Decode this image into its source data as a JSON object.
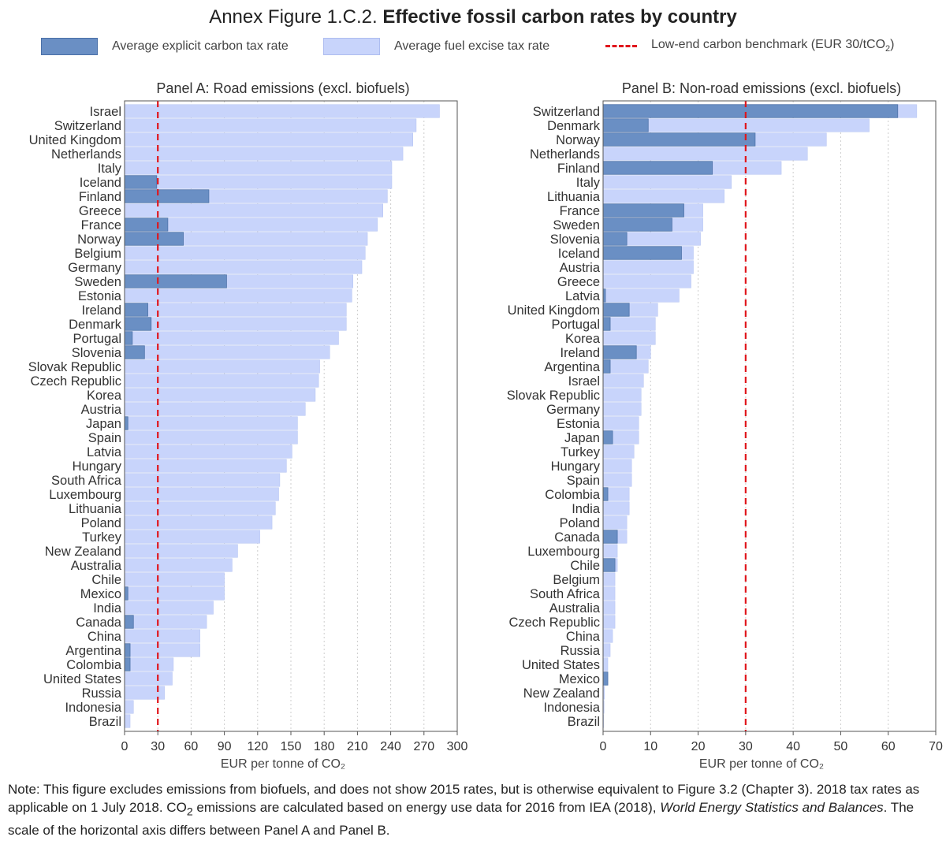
{
  "figure": {
    "title_lead": "Annex Figure 1.C.2.",
    "title_bold": "Effective fossil carbon rates by country"
  },
  "legend": {
    "carbon_tax": "Average explicit carbon tax rate",
    "fuel_excise": "Average fuel excise tax rate",
    "benchmark": "Low-end carbon benchmark (EUR 30/tCO",
    "benchmark_sub": "2",
    "benchmark_end": ")"
  },
  "colors": {
    "carbon_tax": "#6a8fc4",
    "fuel_excise": "#c8d4fb",
    "benchmark": "#e0161c"
  },
  "note": {
    "part1": "Note: This figure excludes emissions from biofuels, and does not show 2015 rates, but is otherwise equivalent to Figure 3.2 (Chapter 3). 2018 tax rates as applicable on 1 July 2018. CO",
    "sub": "2",
    "part2": " emissions are calculated based on energy use data for 2016 from IEA (2018), ",
    "italic": "World Energy Statistics and Balances",
    "part3": ". The scale of the horizontal axis differs between Panel A and Panel B."
  },
  "chart_data": [
    {
      "type": "bar",
      "orientation": "horizontal",
      "title": "Panel A: Road emissions (excl. biofuels)",
      "xlabel": "EUR per tonne of CO₂",
      "xlim": [
        0,
        300
      ],
      "xticks": [
        0,
        30,
        60,
        90,
        120,
        150,
        180,
        210,
        240,
        270,
        300
      ],
      "benchmark": 30,
      "categories": [
        "Israel",
        "Switzerland",
        "United Kingdom",
        "Netherlands",
        "Italy",
        "Iceland",
        "Finland",
        "Greece",
        "France",
        "Norway",
        "Belgium",
        "Germany",
        "Sweden",
        "Estonia",
        "Ireland",
        "Denmark",
        "Portugal",
        "Slovenia",
        "Slovak Republic",
        "Czech Republic",
        "Korea",
        "Austria",
        "Japan",
        "Spain",
        "Latvia",
        "Hungary",
        "South Africa",
        "Luxembourg",
        "Lithuania",
        "Poland",
        "Turkey",
        "New Zealand",
        "Australia",
        "Chile",
        "Mexico",
        "India",
        "Canada",
        "China",
        "Argentina",
        "Colombia",
        "United States",
        "Russia",
        "Indonesia",
        "Brazil"
      ],
      "series": [
        {
          "name": "Average fuel excise tax rate",
          "values": [
            284,
            263,
            260,
            251,
            241,
            241,
            237,
            233,
            228,
            219,
            217,
            214,
            206,
            205,
            200,
            200,
            193,
            185,
            176,
            175,
            172,
            163,
            156,
            156,
            151,
            146,
            140,
            139,
            136,
            133,
            122,
            102,
            97,
            90,
            90,
            80,
            74,
            68,
            68,
            44,
            43,
            36,
            8,
            5
          ]
        },
        {
          "name": "Average explicit carbon tax rate",
          "values": [
            0,
            0,
            0,
            0,
            0,
            29,
            76,
            0,
            39,
            53,
            0,
            0,
            92,
            0,
            21,
            24,
            7,
            18,
            0,
            0,
            0,
            0,
            3,
            0,
            0,
            0,
            0,
            0,
            0,
            0,
            0,
            0,
            0,
            0,
            3,
            0,
            8,
            0,
            5,
            5,
            0,
            0,
            0,
            0
          ]
        }
      ]
    },
    {
      "type": "bar",
      "orientation": "horizontal",
      "title": "Panel B: Non-road emissions (excl. biofuels)",
      "xlabel": "EUR per tonne of CO₂",
      "xlim": [
        0,
        70
      ],
      "xticks": [
        0,
        10,
        20,
        30,
        40,
        50,
        60,
        70
      ],
      "benchmark": 30,
      "categories": [
        "Switzerland",
        "Denmark",
        "Norway",
        "Netherlands",
        "Finland",
        "Italy",
        "Lithuania",
        "France",
        "Sweden",
        "Slovenia",
        "Iceland",
        "Austria",
        "Greece",
        "Latvia",
        "United Kingdom",
        "Portugal",
        "Korea",
        "Ireland",
        "Argentina",
        "Israel",
        "Slovak Republic",
        "Germany",
        "Estonia",
        "Japan",
        "Turkey",
        "Hungary",
        "Spain",
        "Colombia",
        "India",
        "Poland",
        "Canada",
        "Luxembourg",
        "Chile",
        "Belgium",
        "South Africa",
        "Australia",
        "Czech Republic",
        "China",
        "Russia",
        "United States",
        "Mexico",
        "New Zealand",
        "Indonesia",
        "Brazil"
      ],
      "series": [
        {
          "name": "Average fuel excise tax rate",
          "values": [
            66,
            56,
            47,
            43,
            37.5,
            27,
            25.5,
            21,
            21,
            20.5,
            19,
            19,
            18.5,
            16,
            11.5,
            11,
            11,
            10,
            9.5,
            8.5,
            8,
            8,
            7.5,
            7.5,
            6.5,
            6,
            6,
            5.5,
            5.5,
            5,
            5,
            3,
            3,
            2.5,
            2.5,
            2.5,
            2.5,
            2,
            1.5,
            1,
            1,
            0.3,
            0.2,
            0.1
          ]
        },
        {
          "name": "Average explicit carbon tax rate",
          "values": [
            62,
            9.5,
            32,
            0,
            23,
            0,
            0,
            17,
            14.5,
            5,
            16.5,
            0,
            0,
            0.5,
            5.5,
            1.5,
            0,
            7,
            1.5,
            0,
            0,
            0,
            0,
            2,
            0,
            0,
            0,
            1,
            0,
            0,
            3,
            0,
            2.5,
            0,
            0,
            0,
            0,
            0,
            0,
            0,
            1,
            0,
            0,
            0
          ]
        }
      ]
    }
  ]
}
